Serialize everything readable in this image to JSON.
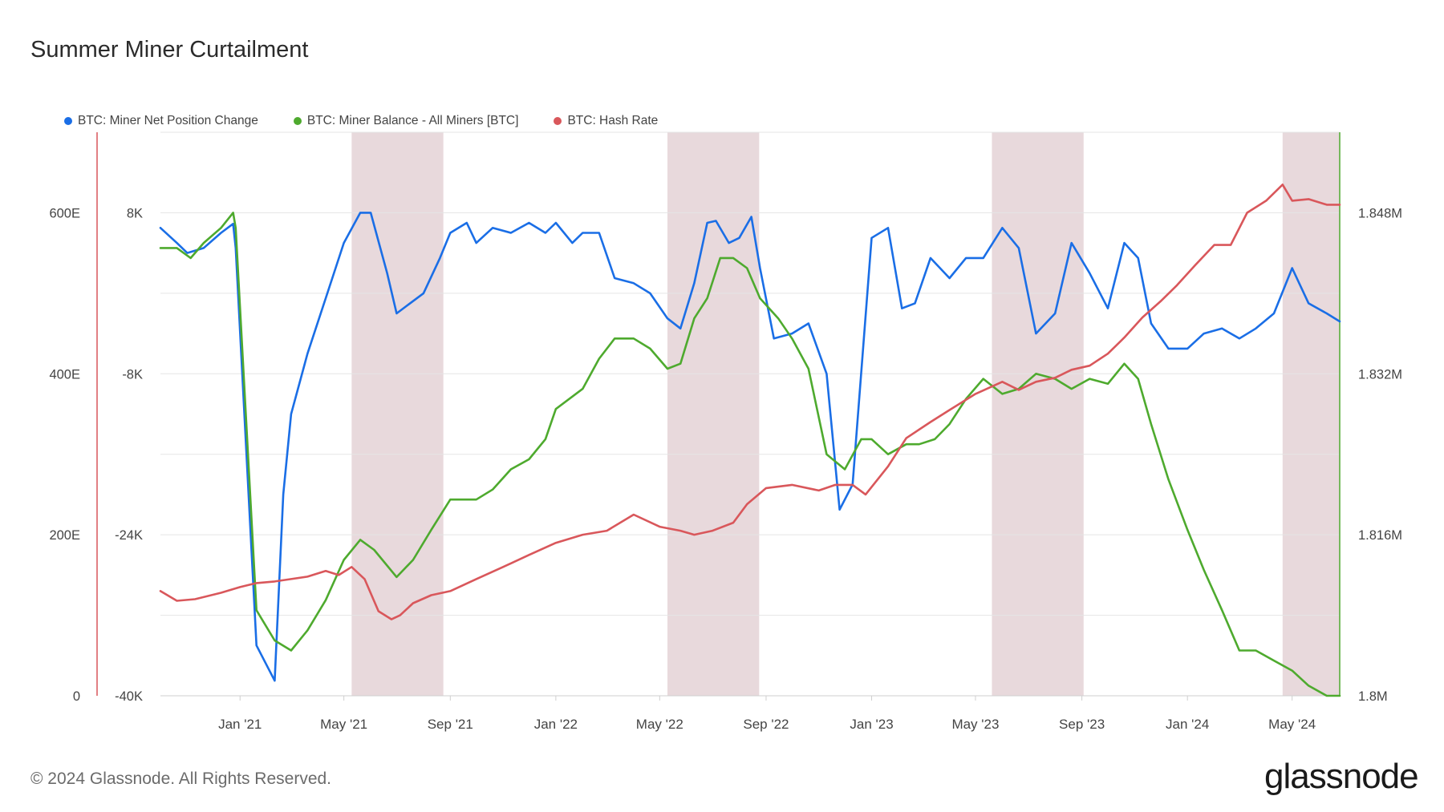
{
  "title": "Summer Miner Curtailment",
  "footer": "© 2024 Glassnode. All Rights Reserved.",
  "brand": "glassnode",
  "colors": {
    "net_position": "#1a6ee6",
    "miner_balance": "#4eaa2e",
    "hash_rate": "#d9575b",
    "band": "#e8d9dc",
    "grid": "#e5e5e5"
  },
  "chart_data": {
    "type": "line",
    "title": "Summer Miner Curtailment",
    "x_range": [
      "2020-10-01",
      "2024-06-25"
    ],
    "x_ticks": [
      {
        "date": "2021-01-01",
        "label": "Jan '21"
      },
      {
        "date": "2021-05-01",
        "label": "May '21"
      },
      {
        "date": "2021-09-01",
        "label": "Sep '21"
      },
      {
        "date": "2022-01-01",
        "label": "Jan '22"
      },
      {
        "date": "2022-05-01",
        "label": "May '22"
      },
      {
        "date": "2022-09-01",
        "label": "Sep '22"
      },
      {
        "date": "2023-01-01",
        "label": "Jan '23"
      },
      {
        "date": "2023-05-01",
        "label": "May '23"
      },
      {
        "date": "2023-09-01",
        "label": "Sep '23"
      },
      {
        "date": "2024-01-01",
        "label": "Jan '24"
      },
      {
        "date": "2024-05-01",
        "label": "May '24"
      }
    ],
    "axes": {
      "hash_rate": {
        "min": 0,
        "max": 700,
        "ticks": [
          {
            "v": 0,
            "label": "0"
          },
          {
            "v": 200,
            "label": "200E"
          },
          {
            "v": 400,
            "label": "400E"
          },
          {
            "v": 600,
            "label": "600E"
          }
        ]
      },
      "net_position": {
        "min": -40000,
        "max": 16000,
        "ticks": [
          {
            "v": -40000,
            "label": "-40K"
          },
          {
            "v": -24000,
            "label": "-24K"
          },
          {
            "v": -8000,
            "label": "-8K"
          },
          {
            "v": 8000,
            "label": "8K"
          }
        ]
      },
      "miner_balance": {
        "min": 1.8,
        "max": 1.856,
        "ticks": [
          {
            "v": 1.8,
            "label": "1.8M"
          },
          {
            "v": 1.816,
            "label": "1.816M"
          },
          {
            "v": 1.832,
            "label": "1.832M"
          },
          {
            "v": 1.848,
            "label": "1.848M"
          }
        ]
      }
    },
    "grid": true,
    "legend_placement": "top-left",
    "shaded_periods": [
      [
        "2021-05-10",
        "2021-08-24"
      ],
      [
        "2022-05-10",
        "2022-08-24"
      ],
      [
        "2023-05-20",
        "2023-09-03"
      ],
      [
        "2024-04-20",
        "2024-06-25"
      ]
    ],
    "series": [
      {
        "name": "BTC: Miner Net Position Change",
        "key": "net_position",
        "axis": "net_position",
        "color": "#1a6ee6",
        "x": [
          "2020-10-01",
          "2020-10-20",
          "2020-11-01",
          "2020-11-20",
          "2020-12-10",
          "2020-12-24",
          "2020-12-27",
          "2021-01-20",
          "2021-02-10",
          "2021-02-20",
          "2021-03-01",
          "2021-03-20",
          "2021-04-10",
          "2021-05-01",
          "2021-05-20",
          "2021-06-01",
          "2021-06-20",
          "2021-07-01",
          "2021-08-01",
          "2021-08-20",
          "2021-09-01",
          "2021-09-20",
          "2021-10-01",
          "2021-10-20",
          "2021-11-10",
          "2021-12-01",
          "2021-12-20",
          "2022-01-01",
          "2022-01-20",
          "2022-02-01",
          "2022-02-20",
          "2022-03-10",
          "2022-04-01",
          "2022-04-20",
          "2022-05-10",
          "2022-05-25",
          "2022-06-10",
          "2022-06-25",
          "2022-07-05",
          "2022-07-20",
          "2022-08-01",
          "2022-08-15",
          "2022-08-25",
          "2022-09-10",
          "2022-10-01",
          "2022-10-20",
          "2022-11-10",
          "2022-11-25",
          "2022-12-10",
          "2023-01-01",
          "2023-01-20",
          "2023-02-05",
          "2023-02-20",
          "2023-03-10",
          "2023-04-01",
          "2023-04-20",
          "2023-05-10",
          "2023-06-01",
          "2023-06-20",
          "2023-07-10",
          "2023-08-01",
          "2023-08-20",
          "2023-09-10",
          "2023-10-01",
          "2023-10-20",
          "2023-11-05",
          "2023-11-20",
          "2023-12-10",
          "2024-01-01",
          "2024-01-20",
          "2024-02-10",
          "2024-03-01",
          "2024-03-20",
          "2024-04-10",
          "2024-05-01",
          "2024-05-20",
          "2024-06-10",
          "2024-06-25"
        ],
        "y": [
          6500,
          5000,
          4000,
          4500,
          6000,
          6900,
          4500,
          -35000,
          -38500,
          -20000,
          -12000,
          -6000,
          -500,
          5000,
          8000,
          8000,
          2000,
          -2000,
          0,
          3500,
          6000,
          7000,
          5000,
          6500,
          6000,
          7000,
          6000,
          7000,
          5000,
          6000,
          6000,
          1500,
          1000,
          0,
          -2500,
          -3500,
          1000,
          7000,
          7200,
          5000,
          5500,
          7600,
          2500,
          -4500,
          -4000,
          -3000,
          -8000,
          -21500,
          -19000,
          5500,
          6500,
          -1500,
          -1000,
          3500,
          1500,
          3500,
          3500,
          6500,
          4500,
          -4000,
          -2000,
          5000,
          2000,
          -1500,
          5000,
          3500,
          -3000,
          -5500,
          -5500,
          -4000,
          -3500,
          -4500,
          -3500,
          -2000,
          2500,
          -1000,
          -2000,
          -2800
        ]
      },
      {
        "name": "BTC: Miner Balance - All Miners [BTC]",
        "key": "miner_balance",
        "axis": "miner_balance",
        "color": "#4eaa2e",
        "x": [
          "2020-10-01",
          "2020-10-20",
          "2020-11-05",
          "2020-11-20",
          "2020-12-10",
          "2020-12-24",
          "2020-12-27",
          "2021-01-20",
          "2021-02-10",
          "2021-03-01",
          "2021-03-20",
          "2021-04-10",
          "2021-05-01",
          "2021-05-20",
          "2021-06-05",
          "2021-07-01",
          "2021-07-20",
          "2021-08-10",
          "2021-09-01",
          "2021-10-01",
          "2021-10-20",
          "2021-11-10",
          "2021-12-01",
          "2021-12-20",
          "2022-01-01",
          "2022-02-01",
          "2022-02-20",
          "2022-03-10",
          "2022-04-01",
          "2022-04-20",
          "2022-05-10",
          "2022-05-25",
          "2022-06-10",
          "2022-06-25",
          "2022-07-10",
          "2022-07-25",
          "2022-08-10",
          "2022-08-25",
          "2022-09-15",
          "2022-10-01",
          "2022-10-20",
          "2022-11-10",
          "2022-12-01",
          "2022-12-20",
          "2023-01-01",
          "2023-01-20",
          "2023-02-10",
          "2023-02-25",
          "2023-03-15",
          "2023-04-01",
          "2023-04-20",
          "2023-05-10",
          "2023-06-01",
          "2023-06-20",
          "2023-07-10",
          "2023-08-01",
          "2023-08-20",
          "2023-09-10",
          "2023-10-01",
          "2023-10-20",
          "2023-11-05",
          "2023-11-20",
          "2023-12-10",
          "2024-01-01",
          "2024-01-20",
          "2024-02-10",
          "2024-03-01",
          "2024-03-20",
          "2024-04-10",
          "2024-05-01",
          "2024-05-20",
          "2024-06-10",
          "2024-06-25"
        ],
        "y": [
          1.8445,
          1.8445,
          1.8435,
          1.845,
          1.8465,
          1.848,
          1.8465,
          1.8085,
          1.8055,
          1.8045,
          1.8065,
          1.8095,
          1.8135,
          1.8155,
          1.8145,
          1.8118,
          1.8135,
          1.8165,
          1.8195,
          1.8195,
          1.8205,
          1.8225,
          1.8235,
          1.8255,
          1.8285,
          1.8305,
          1.8335,
          1.8355,
          1.8355,
          1.8345,
          1.8325,
          1.833,
          1.8375,
          1.8395,
          1.8435,
          1.8435,
          1.8425,
          1.8395,
          1.8375,
          1.8355,
          1.8325,
          1.824,
          1.8225,
          1.8255,
          1.8255,
          1.824,
          1.825,
          1.825,
          1.8255,
          1.827,
          1.8295,
          1.8315,
          1.83,
          1.8305,
          1.832,
          1.8315,
          1.8305,
          1.8315,
          1.831,
          1.833,
          1.8315,
          1.827,
          1.8215,
          1.8165,
          1.8125,
          1.8085,
          1.8045,
          1.8045,
          1.8035,
          1.8025,
          1.801,
          1.8,
          1.8
        ]
      },
      {
        "name": "BTC: Hash Rate",
        "key": "hash_rate",
        "axis": "hash_rate",
        "color": "#d9575b",
        "x": [
          "2020-10-01",
          "2020-10-20",
          "2020-11-10",
          "2020-12-10",
          "2021-01-01",
          "2021-01-20",
          "2021-02-10",
          "2021-03-01",
          "2021-03-20",
          "2021-04-10",
          "2021-04-25",
          "2021-05-10",
          "2021-05-25",
          "2021-06-10",
          "2021-06-25",
          "2021-07-05",
          "2021-07-20",
          "2021-08-10",
          "2021-09-01",
          "2021-10-01",
          "2021-11-01",
          "2021-12-01",
          "2022-01-01",
          "2022-02-01",
          "2022-03-01",
          "2022-04-01",
          "2022-05-01",
          "2022-05-25",
          "2022-06-10",
          "2022-07-01",
          "2022-07-25",
          "2022-08-10",
          "2022-09-01",
          "2022-10-01",
          "2022-11-01",
          "2022-11-20",
          "2022-12-10",
          "2022-12-25",
          "2023-01-20",
          "2023-02-10",
          "2023-03-10",
          "2023-04-01",
          "2023-05-01",
          "2023-06-01",
          "2023-06-20",
          "2023-07-10",
          "2023-08-01",
          "2023-08-20",
          "2023-09-10",
          "2023-10-01",
          "2023-10-20",
          "2023-11-10",
          "2023-12-01",
          "2023-12-20",
          "2024-01-10",
          "2024-02-01",
          "2024-02-20",
          "2024-03-10",
          "2024-04-01",
          "2024-04-20",
          "2024-05-01",
          "2024-05-20",
          "2024-06-10",
          "2024-06-25"
        ],
        "y": [
          130,
          118,
          120,
          128,
          135,
          140,
          142,
          145,
          148,
          155,
          150,
          160,
          145,
          105,
          95,
          100,
          115,
          125,
          130,
          145,
          160,
          175,
          190,
          200,
          205,
          225,
          210,
          205,
          200,
          205,
          215,
          238,
          258,
          262,
          255,
          262,
          262,
          250,
          285,
          320,
          340,
          355,
          375,
          390,
          380,
          390,
          395,
          405,
          410,
          425,
          445,
          470,
          490,
          510,
          535,
          560,
          560,
          600,
          615,
          635,
          615,
          617,
          610,
          610
        ]
      }
    ]
  }
}
